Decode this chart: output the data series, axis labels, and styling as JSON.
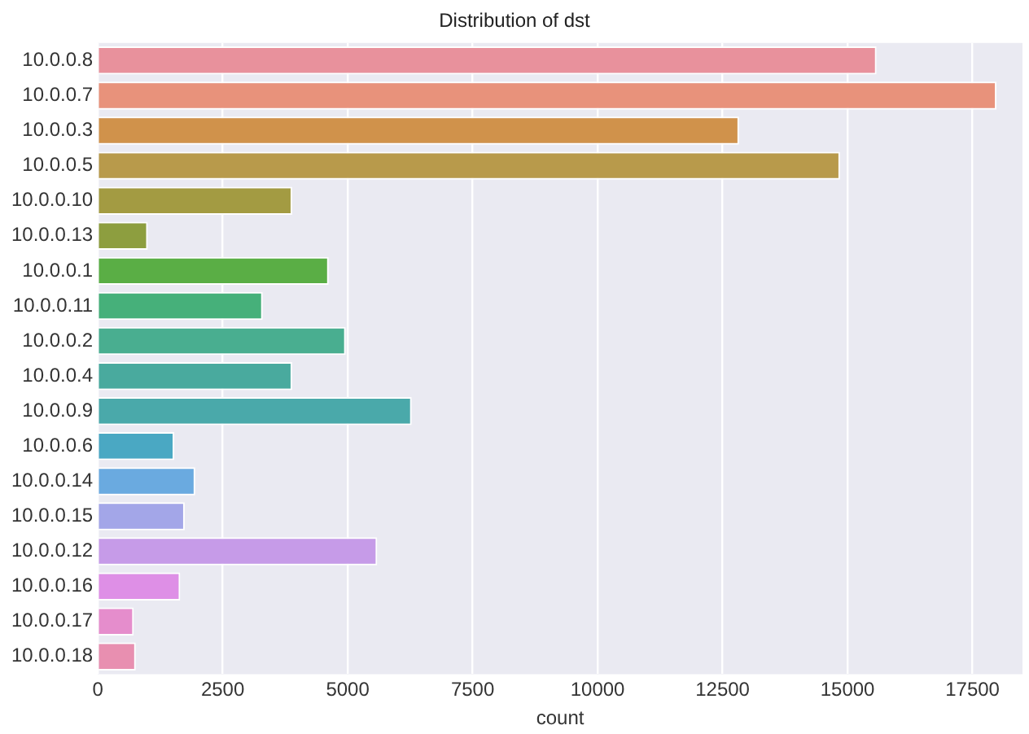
{
  "chart_data": {
    "type": "bar",
    "orientation": "horizontal",
    "title": "Distribution of dst",
    "xlabel": "count",
    "categories": [
      "10.0.0.8",
      "10.0.0.7",
      "10.0.0.3",
      "10.0.0.5",
      "10.0.0.10",
      "10.0.0.13",
      "10.0.0.1",
      "10.0.0.11",
      "10.0.0.2",
      "10.0.0.4",
      "10.0.0.9",
      "10.0.0.6",
      "10.0.0.14",
      "10.0.0.15",
      "10.0.0.12",
      "10.0.0.16",
      "10.0.0.17",
      "10.0.0.18"
    ],
    "values": [
      15580,
      17980,
      12830,
      14850,
      3890,
      1000,
      4620,
      3300,
      4960,
      3890,
      6280,
      1530,
      1950,
      1740,
      5590,
      1650,
      720,
      760
    ],
    "colors": [
      "#e8919c",
      "#e8927b",
      "#d0924b",
      "#b89a4b",
      "#a39b42",
      "#8d9e3f",
      "#5aae45",
      "#46b07a",
      "#49ae90",
      "#49aa9e",
      "#4aa9aa",
      "#4aa8c3",
      "#6aaae0",
      "#a3a6e8",
      "#c69be8",
      "#de8fe6",
      "#e58dcc",
      "#e88fb0"
    ],
    "xlim": [
      0,
      18500
    ],
    "xticks": [
      0,
      2500,
      5000,
      7500,
      10000,
      12500,
      15000,
      17500
    ],
    "grid": "x"
  }
}
